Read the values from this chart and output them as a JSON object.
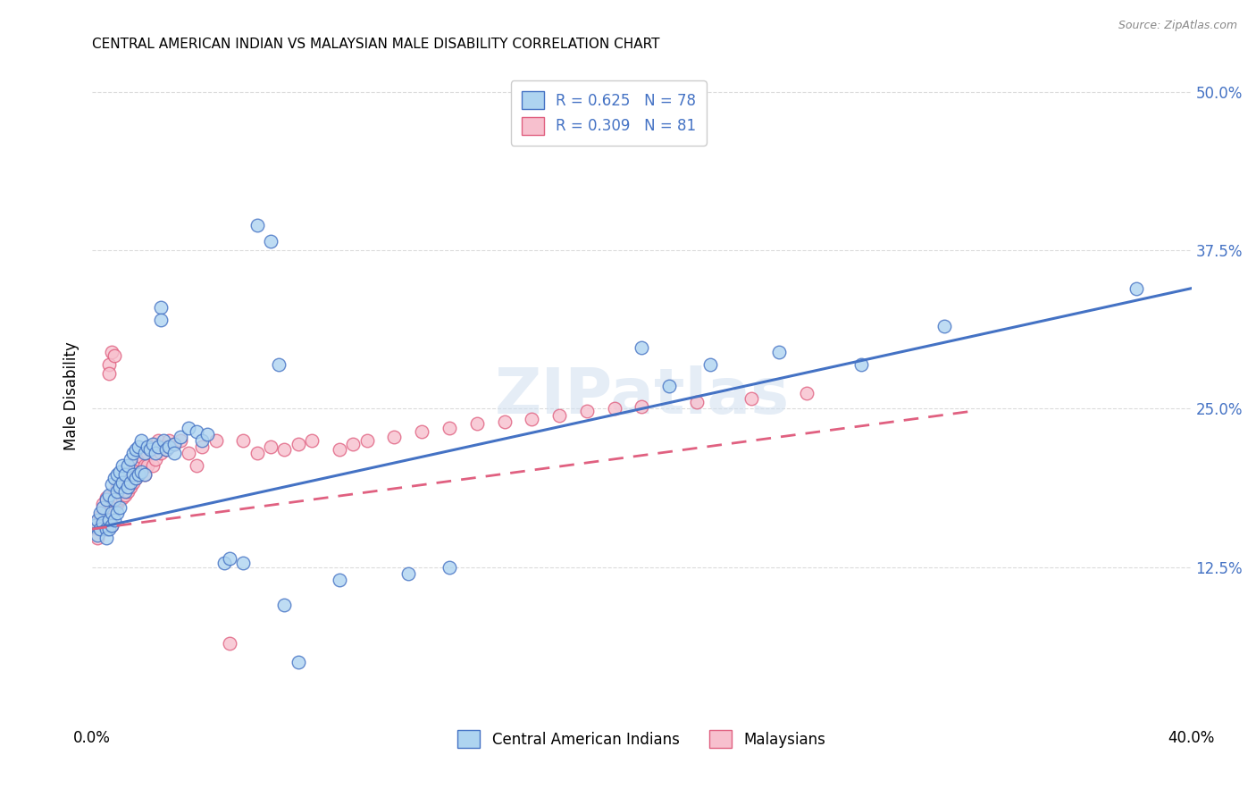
{
  "title": "CENTRAL AMERICAN INDIAN VS MALAYSIAN MALE DISABILITY CORRELATION CHART",
  "source": "Source: ZipAtlas.com",
  "ylabel": "Male Disability",
  "yticks": [
    "12.5%",
    "25.0%",
    "37.5%",
    "50.0%"
  ],
  "ytick_vals": [
    0.125,
    0.25,
    0.375,
    0.5
  ],
  "xlim": [
    0.0,
    0.4
  ],
  "ylim": [
    0.0,
    0.52
  ],
  "blue_R": 0.625,
  "blue_N": 78,
  "pink_R": 0.309,
  "pink_N": 81,
  "blue_color": "#aed4f0",
  "pink_color": "#f7c0ce",
  "blue_line_color": "#4472c4",
  "pink_line_color": "#e06080",
  "watermark": "ZIPatlas",
  "legend_label_blue": "Central American Indians",
  "legend_label_pink": "Malaysians",
  "blue_points": [
    [
      0.001,
      0.158
    ],
    [
      0.002,
      0.162
    ],
    [
      0.002,
      0.15
    ],
    [
      0.003,
      0.168
    ],
    [
      0.003,
      0.155
    ],
    [
      0.004,
      0.172
    ],
    [
      0.004,
      0.16
    ],
    [
      0.005,
      0.178
    ],
    [
      0.005,
      0.155
    ],
    [
      0.005,
      0.148
    ],
    [
      0.006,
      0.182
    ],
    [
      0.006,
      0.162
    ],
    [
      0.006,
      0.155
    ],
    [
      0.007,
      0.19
    ],
    [
      0.007,
      0.168
    ],
    [
      0.007,
      0.158
    ],
    [
      0.008,
      0.195
    ],
    [
      0.008,
      0.178
    ],
    [
      0.008,
      0.162
    ],
    [
      0.009,
      0.198
    ],
    [
      0.009,
      0.185
    ],
    [
      0.009,
      0.168
    ],
    [
      0.01,
      0.2
    ],
    [
      0.01,
      0.188
    ],
    [
      0.01,
      0.172
    ],
    [
      0.011,
      0.205
    ],
    [
      0.011,
      0.192
    ],
    [
      0.012,
      0.198
    ],
    [
      0.012,
      0.185
    ],
    [
      0.013,
      0.205
    ],
    [
      0.013,
      0.188
    ],
    [
      0.014,
      0.21
    ],
    [
      0.014,
      0.192
    ],
    [
      0.015,
      0.215
    ],
    [
      0.015,
      0.198
    ],
    [
      0.016,
      0.218
    ],
    [
      0.016,
      0.195
    ],
    [
      0.017,
      0.22
    ],
    [
      0.017,
      0.198
    ],
    [
      0.018,
      0.225
    ],
    [
      0.018,
      0.2
    ],
    [
      0.019,
      0.215
    ],
    [
      0.019,
      0.198
    ],
    [
      0.02,
      0.22
    ],
    [
      0.021,
      0.218
    ],
    [
      0.022,
      0.222
    ],
    [
      0.023,
      0.215
    ],
    [
      0.024,
      0.22
    ],
    [
      0.025,
      0.33
    ],
    [
      0.025,
      0.32
    ],
    [
      0.026,
      0.225
    ],
    [
      0.027,
      0.218
    ],
    [
      0.028,
      0.22
    ],
    [
      0.03,
      0.222
    ],
    [
      0.03,
      0.215
    ],
    [
      0.032,
      0.228
    ],
    [
      0.035,
      0.235
    ],
    [
      0.038,
      0.232
    ],
    [
      0.04,
      0.225
    ],
    [
      0.042,
      0.23
    ],
    [
      0.048,
      0.128
    ],
    [
      0.05,
      0.132
    ],
    [
      0.055,
      0.128
    ],
    [
      0.06,
      0.395
    ],
    [
      0.065,
      0.382
    ],
    [
      0.068,
      0.285
    ],
    [
      0.07,
      0.095
    ],
    [
      0.075,
      0.05
    ],
    [
      0.09,
      0.115
    ],
    [
      0.115,
      0.12
    ],
    [
      0.13,
      0.125
    ],
    [
      0.2,
      0.298
    ],
    [
      0.21,
      0.268
    ],
    [
      0.225,
      0.285
    ],
    [
      0.25,
      0.295
    ],
    [
      0.28,
      0.285
    ],
    [
      0.31,
      0.315
    ],
    [
      0.38,
      0.345
    ]
  ],
  "pink_points": [
    [
      0.001,
      0.16
    ],
    [
      0.002,
      0.155
    ],
    [
      0.002,
      0.148
    ],
    [
      0.003,
      0.165
    ],
    [
      0.003,
      0.158
    ],
    [
      0.004,
      0.175
    ],
    [
      0.004,
      0.162
    ],
    [
      0.005,
      0.18
    ],
    [
      0.005,
      0.168
    ],
    [
      0.005,
      0.155
    ],
    [
      0.006,
      0.285
    ],
    [
      0.006,
      0.278
    ],
    [
      0.006,
      0.162
    ],
    [
      0.007,
      0.295
    ],
    [
      0.007,
      0.172
    ],
    [
      0.007,
      0.158
    ],
    [
      0.008,
      0.292
    ],
    [
      0.008,
      0.18
    ],
    [
      0.009,
      0.188
    ],
    [
      0.009,
      0.175
    ],
    [
      0.01,
      0.19
    ],
    [
      0.01,
      0.178
    ],
    [
      0.011,
      0.192
    ],
    [
      0.011,
      0.18
    ],
    [
      0.012,
      0.195
    ],
    [
      0.012,
      0.182
    ],
    [
      0.013,
      0.198
    ],
    [
      0.013,
      0.185
    ],
    [
      0.014,
      0.2
    ],
    [
      0.014,
      0.188
    ],
    [
      0.015,
      0.205
    ],
    [
      0.015,
      0.192
    ],
    [
      0.016,
      0.208
    ],
    [
      0.016,
      0.195
    ],
    [
      0.017,
      0.21
    ],
    [
      0.017,
      0.198
    ],
    [
      0.018,
      0.212
    ],
    [
      0.018,
      0.2
    ],
    [
      0.019,
      0.205
    ],
    [
      0.019,
      0.198
    ],
    [
      0.02,
      0.215
    ],
    [
      0.02,
      0.205
    ],
    [
      0.021,
      0.218
    ],
    [
      0.022,
      0.22
    ],
    [
      0.022,
      0.205
    ],
    [
      0.023,
      0.222
    ],
    [
      0.023,
      0.21
    ],
    [
      0.024,
      0.225
    ],
    [
      0.025,
      0.215
    ],
    [
      0.026,
      0.22
    ],
    [
      0.027,
      0.218
    ],
    [
      0.028,
      0.225
    ],
    [
      0.03,
      0.222
    ],
    [
      0.032,
      0.225
    ],
    [
      0.035,
      0.215
    ],
    [
      0.038,
      0.205
    ],
    [
      0.04,
      0.22
    ],
    [
      0.045,
      0.225
    ],
    [
      0.05,
      0.065
    ],
    [
      0.055,
      0.225
    ],
    [
      0.06,
      0.215
    ],
    [
      0.065,
      0.22
    ],
    [
      0.07,
      0.218
    ],
    [
      0.075,
      0.222
    ],
    [
      0.08,
      0.225
    ],
    [
      0.09,
      0.218
    ],
    [
      0.095,
      0.222
    ],
    [
      0.1,
      0.225
    ],
    [
      0.11,
      0.228
    ],
    [
      0.12,
      0.232
    ],
    [
      0.13,
      0.235
    ],
    [
      0.14,
      0.238
    ],
    [
      0.15,
      0.24
    ],
    [
      0.16,
      0.242
    ],
    [
      0.17,
      0.245
    ],
    [
      0.18,
      0.248
    ],
    [
      0.19,
      0.25
    ],
    [
      0.2,
      0.252
    ],
    [
      0.22,
      0.255
    ],
    [
      0.24,
      0.258
    ],
    [
      0.26,
      0.262
    ]
  ]
}
